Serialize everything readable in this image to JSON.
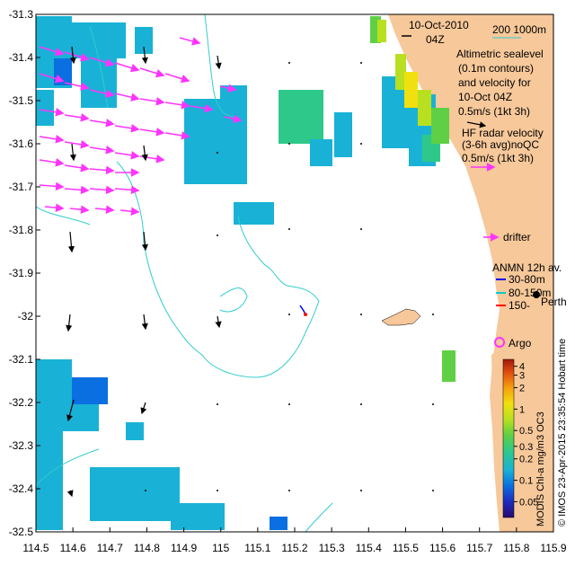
{
  "map": {
    "extent": {
      "lon_min": 114.5,
      "lon_max": 115.9,
      "lat_min": -32.5,
      "lat_max": -31.3
    },
    "x_ticks": [
      {
        "value": 114.5,
        "label": "114.5"
      },
      {
        "value": 114.6,
        "label": "114.6"
      },
      {
        "value": 114.7,
        "label": "114.7"
      },
      {
        "value": 114.8,
        "label": "114.8"
      },
      {
        "value": 114.9,
        "label": "114.9"
      },
      {
        "value": 115.0,
        "label": "115"
      },
      {
        "value": 115.1,
        "label": "115.1"
      },
      {
        "value": 115.2,
        "label": "115.2"
      },
      {
        "value": 115.3,
        "label": "115.3"
      },
      {
        "value": 115.4,
        "label": "115.4"
      },
      {
        "value": 115.5,
        "label": "115.5"
      },
      {
        "value": 115.6,
        "label": "115.6"
      },
      {
        "value": 115.7,
        "label": "115.7"
      },
      {
        "value": 115.8,
        "label": "115.8"
      },
      {
        "value": 115.9,
        "label": "115.9"
      }
    ],
    "y_ticks": [
      {
        "value": -31.3,
        "label": "-31.3"
      },
      {
        "value": -31.4,
        "label": "-31.4"
      },
      {
        "value": -31.5,
        "label": "-31.5"
      },
      {
        "value": -31.6,
        "label": "-31.6"
      },
      {
        "value": -31.7,
        "label": "-31.7"
      },
      {
        "value": -31.8,
        "label": "-31.8"
      },
      {
        "value": -31.9,
        "label": "-31.9"
      },
      {
        "value": -32.0,
        "label": "-32"
      },
      {
        "value": -32.1,
        "label": "-32.1"
      },
      {
        "value": -32.2,
        "label": "-32.2"
      },
      {
        "value": -32.3,
        "label": "-32.3"
      },
      {
        "value": -32.4,
        "label": "-32.4"
      },
      {
        "value": -32.5,
        "label": "-32.5"
      }
    ],
    "colors": {
      "land": "#f7c89a",
      "contour": "#33cccc",
      "hf_radar": "#ff33ff",
      "altimetry_vector": "#000000",
      "drifter": "#ff33ff",
      "argo": "#ff33ff",
      "depth_30_80": "#0000ff",
      "depth_80_150": "#00cccc",
      "depth_150_": "#ff0000"
    }
  },
  "annotations": {
    "date": "10-Oct-2010",
    "time": "04Z",
    "depth_contours": "200   1000m",
    "altimetry_line1": "Altimetric sealevel",
    "altimetry_line2": "(0.1m contours)",
    "altimetry_line3": "and velocity for",
    "altimetry_line4": "10-Oct 04Z",
    "altimetry_scale": "0.5m/s (1kt 3h)",
    "hf_line1": "HF radar velocity",
    "hf_line2": "(3-6h avg)noQC",
    "hf_scale": "0.5m/s (1kt 3h)",
    "drifter": "drifter",
    "anmn_title": "ANMN 12h av.",
    "anmn_1": "30-80m",
    "anmn_2": "80-150m",
    "anmn_3": "150-",
    "place": "Perth",
    "argo": "Argo",
    "right_margin": "MODIS Chl-a mg/m3 OC3",
    "credit": "© IMOS 23-Apr-2015 23:35:54 Hobart time"
  },
  "colorbar": {
    "title": "MODIS Chl-a mg/m3 OC3",
    "ticks": [
      {
        "value": 4,
        "label": "4"
      },
      {
        "value": 3,
        "label": "3"
      },
      {
        "value": 2,
        "label": "2"
      },
      {
        "value": 1,
        "label": "1"
      },
      {
        "value": 0.5,
        "label": "0.5"
      },
      {
        "value": 0.3,
        "label": "0.3"
      },
      {
        "value": 0.2,
        "label": "0.2"
      },
      {
        "value": 0.1,
        "label": "0.1"
      },
      {
        "value": 0.05,
        "label": "0.05"
      }
    ],
    "range": [
      0.03,
      5
    ],
    "scale": "log",
    "colors": [
      "#2a0a6e",
      "#1f2bbf",
      "#0a6fe0",
      "#19b2d6",
      "#2ec98a",
      "#5fd045",
      "#b8e020",
      "#f0e010",
      "#f5a010",
      "#e04a10",
      "#a01808"
    ]
  }
}
